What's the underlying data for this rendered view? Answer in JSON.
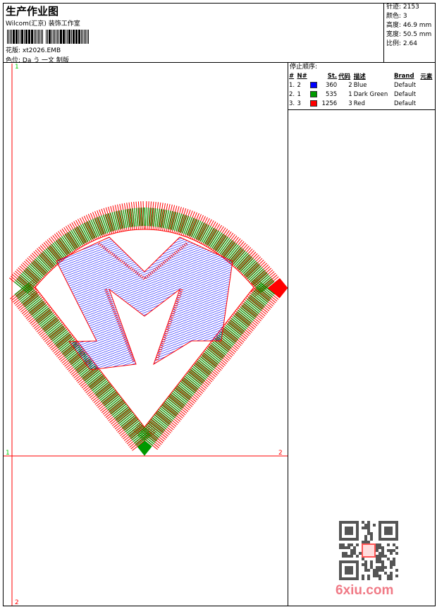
{
  "header": {
    "title": "生产作业图",
    "company": "Wilcom(汇京) 装饰工作室",
    "file_label": "花版: xt2026.EMB",
    "color_label": "色位: Da う 一文 制版"
  },
  "stats": [
    "针迹: 2153",
    "颜色: 3",
    "高度: 46.9 mm",
    "宽度: 50.5 mm",
    "比例: 2.64"
  ],
  "stop_sequence": {
    "caption": "停止顺序:",
    "headers": [
      "#",
      "N#",
      "",
      "St.",
      "代码",
      "描述",
      "Brand",
      "元素"
    ],
    "rows": [
      {
        "idx": "1.",
        "n": "2",
        "color": "#0000ff",
        "st": "360",
        "code": "2",
        "desc": "Blue",
        "brand": "Default"
      },
      {
        "idx": "2.",
        "n": "1",
        "color": "#009900",
        "st": "535",
        "code": "1",
        "desc": "Dark Green",
        "brand": "Default"
      },
      {
        "idx": "3.",
        "n": "3",
        "color": "#ff0000",
        "st": "1256",
        "code": "3",
        "desc": "Red",
        "brand": "Default"
      }
    ]
  },
  "canvas": {
    "marker_top": "1",
    "marker_left": "1",
    "marker_right": "2",
    "marker_bottom": "2",
    "axis_color": "#ff0000",
    "marker_color": "#00cc00"
  },
  "watermark": {
    "logo": "6xiu.com",
    "seal": "风云图版"
  }
}
